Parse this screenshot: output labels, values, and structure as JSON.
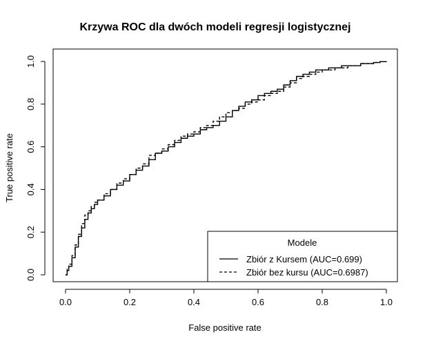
{
  "chart_data": {
    "type": "line",
    "title": "Krzywa ROC dla dwóch modeli regresji logistycznej",
    "xlabel": "False positive rate",
    "ylabel": "True positive rate",
    "xlim": [
      0,
      1
    ],
    "ylim": [
      0,
      1
    ],
    "xticks": [
      "0.0",
      "0.2",
      "0.4",
      "0.6",
      "0.8",
      "1.0"
    ],
    "yticks": [
      "0.0",
      "0.2",
      "0.4",
      "0.6",
      "0.8",
      "1.0"
    ],
    "grid": false,
    "legend": {
      "title": "Modele",
      "position": "bottom-right"
    },
    "series": [
      {
        "name": "Zbiór z Kursem (AUC=0.699)",
        "line_style": "solid",
        "color": "#000000",
        "x": [
          0.0,
          0.005,
          0.01,
          0.02,
          0.03,
          0.04,
          0.05,
          0.06,
          0.07,
          0.08,
          0.09,
          0.1,
          0.12,
          0.14,
          0.16,
          0.18,
          0.2,
          0.22,
          0.24,
          0.26,
          0.28,
          0.3,
          0.32,
          0.34,
          0.36,
          0.38,
          0.4,
          0.42,
          0.44,
          0.46,
          0.48,
          0.5,
          0.52,
          0.54,
          0.56,
          0.58,
          0.6,
          0.62,
          0.64,
          0.66,
          0.68,
          0.7,
          0.72,
          0.74,
          0.76,
          0.78,
          0.8,
          0.82,
          0.84,
          0.86,
          0.88,
          0.9,
          0.92,
          0.94,
          0.96,
          0.98,
          1.0
        ],
        "y": [
          0.0,
          0.02,
          0.04,
          0.08,
          0.13,
          0.18,
          0.22,
          0.26,
          0.29,
          0.31,
          0.33,
          0.35,
          0.37,
          0.4,
          0.42,
          0.44,
          0.47,
          0.49,
          0.51,
          0.54,
          0.57,
          0.58,
          0.6,
          0.62,
          0.64,
          0.65,
          0.66,
          0.68,
          0.69,
          0.7,
          0.72,
          0.74,
          0.77,
          0.79,
          0.81,
          0.82,
          0.84,
          0.85,
          0.86,
          0.87,
          0.89,
          0.91,
          0.93,
          0.94,
          0.95,
          0.96,
          0.96,
          0.97,
          0.97,
          0.98,
          0.98,
          0.98,
          0.99,
          0.99,
          0.995,
          0.999,
          1.0
        ]
      },
      {
        "name": "Zbiór bez kursu (AUC=0.6987)",
        "line_style": "dashed",
        "color": "#000000",
        "x": [
          0.0,
          0.005,
          0.01,
          0.02,
          0.03,
          0.04,
          0.05,
          0.06,
          0.07,
          0.08,
          0.09,
          0.1,
          0.12,
          0.14,
          0.16,
          0.18,
          0.2,
          0.22,
          0.24,
          0.26,
          0.28,
          0.3,
          0.32,
          0.34,
          0.36,
          0.38,
          0.4,
          0.42,
          0.44,
          0.46,
          0.48,
          0.5,
          0.52,
          0.54,
          0.56,
          0.58,
          0.6,
          0.62,
          0.64,
          0.66,
          0.68,
          0.7,
          0.72,
          0.74,
          0.76,
          0.78,
          0.8,
          0.82,
          0.84,
          0.86,
          0.88,
          0.9,
          0.92,
          0.94,
          0.96,
          0.98,
          1.0
        ],
        "y": [
          0.0,
          0.03,
          0.05,
          0.09,
          0.14,
          0.19,
          0.24,
          0.28,
          0.3,
          0.32,
          0.34,
          0.35,
          0.38,
          0.4,
          0.43,
          0.45,
          0.47,
          0.5,
          0.52,
          0.56,
          0.57,
          0.59,
          0.61,
          0.63,
          0.65,
          0.66,
          0.67,
          0.69,
          0.7,
          0.72,
          0.74,
          0.76,
          0.77,
          0.78,
          0.8,
          0.81,
          0.82,
          0.84,
          0.85,
          0.86,
          0.88,
          0.9,
          0.92,
          0.93,
          0.94,
          0.95,
          0.96,
          0.96,
          0.97,
          0.97,
          0.98,
          0.98,
          0.99,
          0.99,
          0.995,
          0.999,
          1.0
        ]
      }
    ]
  }
}
